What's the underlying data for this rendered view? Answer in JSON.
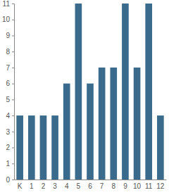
{
  "chart_data": {
    "type": "bar",
    "categories": [
      "K",
      "1",
      "2",
      "3",
      "4",
      "5",
      "6",
      "7",
      "8",
      "9",
      "10",
      "11",
      "12"
    ],
    "values": [
      4,
      4,
      4,
      4,
      6,
      11,
      6,
      7,
      7,
      11,
      7,
      11,
      4
    ],
    "color": "#3b6b8c",
    "ylim": [
      0,
      11
    ],
    "yticks": [
      0,
      1,
      2,
      3,
      4,
      5,
      6,
      7,
      8,
      9,
      10,
      11
    ],
    "grid": false
  }
}
